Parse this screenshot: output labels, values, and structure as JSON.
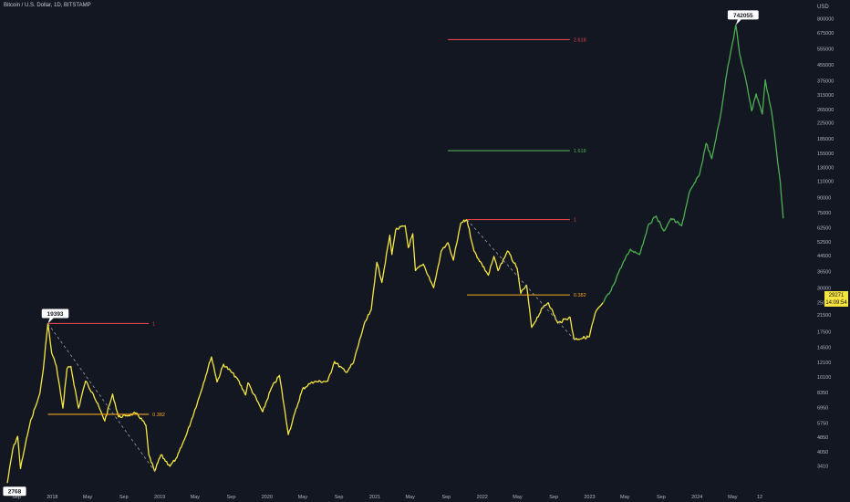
{
  "header": {
    "symbol": "Bitcoin / U.S. Dollar, 1D, BITSTAMP"
  },
  "price_tag": {
    "price": "29271",
    "countdown": "14:09:54"
  },
  "colors": {
    "background": "#131722",
    "history": "#f5e642",
    "projection": "#4caf50",
    "fib_red": "#e0434a",
    "fib_green": "#4caf50",
    "fib_orange": "#f5a623",
    "dashed": "#9aa0a6",
    "axis_text": "#b2b5be"
  },
  "chart_data": {
    "type": "line",
    "title": "Bitcoin / U.S. Dollar, 1D, BITSTAMP",
    "xlabel": "",
    "ylabel": "USD",
    "y_scale": "log",
    "ylim": [
      3000,
      900000
    ],
    "xlim": [
      "2017-08-01",
      "2025-01-31"
    ],
    "x_tick_labels": [
      {
        "date": "2017-09-01",
        "label": "Sep"
      },
      {
        "date": "2018-01-01",
        "label": "2018"
      },
      {
        "date": "2018-05-01",
        "label": "May"
      },
      {
        "date": "2018-09-01",
        "label": "Sep"
      },
      {
        "date": "2019-01-01",
        "label": "2019"
      },
      {
        "date": "2019-05-01",
        "label": "May"
      },
      {
        "date": "2019-09-01",
        "label": "Sep"
      },
      {
        "date": "2020-01-01",
        "label": "2020"
      },
      {
        "date": "2020-05-01",
        "label": "May"
      },
      {
        "date": "2020-09-01",
        "label": "Sep"
      },
      {
        "date": "2021-01-01",
        "label": "2021"
      },
      {
        "date": "2021-05-01",
        "label": "May"
      },
      {
        "date": "2021-09-01",
        "label": "Sep"
      },
      {
        "date": "2022-01-01",
        "label": "2022"
      },
      {
        "date": "2022-05-01",
        "label": "May"
      },
      {
        "date": "2022-09-01",
        "label": "Sep"
      },
      {
        "date": "2023-01-01",
        "label": "2023"
      },
      {
        "date": "2023-05-01",
        "label": "May"
      },
      {
        "date": "2023-09-01",
        "label": "Sep"
      },
      {
        "date": "2024-01-01",
        "label": "2024"
      },
      {
        "date": "2024-05-01",
        "label": "May"
      },
      {
        "date": "2024-08-01",
        "label": "12"
      }
    ],
    "y_tick_labels": [
      "800000",
      "675000",
      "555000",
      "455000",
      "375000",
      "315000",
      "265000",
      "225000",
      "185000",
      "155000",
      "130000",
      "110000",
      "90000",
      "75000",
      "62500",
      "52500",
      "44500",
      "36500",
      "30000",
      "25000",
      "21500",
      "17500",
      "14500",
      "12100",
      "10100",
      "8350",
      "6950",
      "5750",
      "4850",
      "4050",
      "3410"
    ],
    "series": [
      {
        "color": "#f5e642",
        "points": [
          [
            "2017-08-01",
            2768
          ],
          [
            "2017-08-20",
            4200
          ],
          [
            "2017-09-05",
            4900
          ],
          [
            "2017-09-15",
            3300
          ],
          [
            "2017-10-01",
            4400
          ],
          [
            "2017-10-20",
            6000
          ],
          [
            "2017-11-10",
            7400
          ],
          [
            "2017-11-20",
            8300
          ],
          [
            "2017-12-01",
            11000
          ],
          [
            "2017-12-17",
            19393
          ],
          [
            "2017-12-30",
            13500
          ],
          [
            "2018-01-15",
            11500
          ],
          [
            "2018-02-06",
            6900
          ],
          [
            "2018-02-20",
            11200
          ],
          [
            "2018-03-05",
            11500
          ],
          [
            "2018-03-31",
            6900
          ],
          [
            "2018-04-24",
            9600
          ],
          [
            "2018-05-20",
            8200
          ],
          [
            "2018-06-28",
            5900
          ],
          [
            "2018-07-25",
            8200
          ],
          [
            "2018-08-14",
            6200
          ],
          [
            "2018-09-10",
            6300
          ],
          [
            "2018-10-15",
            6500
          ],
          [
            "2018-11-15",
            5600
          ],
          [
            "2018-11-25",
            3900
          ],
          [
            "2018-12-15",
            3200
          ],
          [
            "2019-01-05",
            3900
          ],
          [
            "2019-02-05",
            3400
          ],
          [
            "2019-03-01",
            3800
          ],
          [
            "2019-04-02",
            5000
          ],
          [
            "2019-05-15",
            7900
          ],
          [
            "2019-06-26",
            12900
          ],
          [
            "2019-07-15",
            9500
          ],
          [
            "2019-08-06",
            11800
          ],
          [
            "2019-09-20",
            10000
          ],
          [
            "2019-10-20",
            8100
          ],
          [
            "2019-10-28",
            9400
          ],
          [
            "2019-12-17",
            6600
          ],
          [
            "2020-01-15",
            8800
          ],
          [
            "2020-02-12",
            10300
          ],
          [
            "2020-03-13",
            5000
          ],
          [
            "2020-04-30",
            8700
          ],
          [
            "2020-06-01",
            9500
          ],
          [
            "2020-07-25",
            9600
          ],
          [
            "2020-08-17",
            12200
          ],
          [
            "2020-09-25",
            10700
          ],
          [
            "2020-10-20",
            12000
          ],
          [
            "2020-11-25",
            19000
          ],
          [
            "2020-12-20",
            23000
          ],
          [
            "2021-01-08",
            41000
          ],
          [
            "2021-01-25",
            32000
          ],
          [
            "2021-02-21",
            57000
          ],
          [
            "2021-02-28",
            45000
          ],
          [
            "2021-03-13",
            61000
          ],
          [
            "2021-04-14",
            64000
          ],
          [
            "2021-04-25",
            49000
          ],
          [
            "2021-05-10",
            58000
          ],
          [
            "2021-05-19",
            37000
          ],
          [
            "2021-06-15",
            40000
          ],
          [
            "2021-07-20",
            30000
          ],
          [
            "2021-08-15",
            47000
          ],
          [
            "2021-09-06",
            52000
          ],
          [
            "2021-09-25",
            42000
          ],
          [
            "2021-10-20",
            66000
          ],
          [
            "2021-11-10",
            69000
          ],
          [
            "2021-12-04",
            47000
          ],
          [
            "2022-01-22",
            35000
          ],
          [
            "2022-02-10",
            44000
          ],
          [
            "2022-02-24",
            37000
          ],
          [
            "2022-03-28",
            47000
          ],
          [
            "2022-04-30",
            38000
          ],
          [
            "2022-05-12",
            28000
          ],
          [
            "2022-06-01",
            31000
          ],
          [
            "2022-06-18",
            18500
          ],
          [
            "2022-07-29",
            24000
          ],
          [
            "2022-08-14",
            25000
          ],
          [
            "2022-09-15",
            19500
          ],
          [
            "2022-10-26",
            21000
          ],
          [
            "2022-11-09",
            16000
          ],
          [
            "2022-12-31",
            16500
          ],
          [
            "2023-01-20",
            22000
          ],
          [
            "2023-02-15",
            25000
          ]
        ]
      },
      {
        "color": "#4caf50",
        "points": [
          [
            "2023-02-15",
            25000
          ],
          [
            "2023-03-15",
            29000
          ],
          [
            "2023-04-15",
            38000
          ],
          [
            "2023-05-20",
            48000
          ],
          [
            "2023-06-20",
            45000
          ],
          [
            "2023-07-20",
            65000
          ],
          [
            "2023-08-15",
            72000
          ],
          [
            "2023-09-10",
            60000
          ],
          [
            "2023-10-05",
            70000
          ],
          [
            "2023-11-10",
            64000
          ],
          [
            "2023-12-05",
            95000
          ],
          [
            "2024-01-10",
            120000
          ],
          [
            "2024-02-01",
            175000
          ],
          [
            "2024-02-20",
            145000
          ],
          [
            "2024-03-20",
            240000
          ],
          [
            "2024-04-15",
            450000
          ],
          [
            "2024-05-01",
            600000
          ],
          [
            "2024-05-12",
            742055
          ],
          [
            "2024-05-25",
            520000
          ],
          [
            "2024-06-15",
            380000
          ],
          [
            "2024-07-05",
            260000
          ],
          [
            "2024-07-20",
            320000
          ],
          [
            "2024-08-10",
            250000
          ],
          [
            "2024-08-20",
            380000
          ],
          [
            "2024-09-10",
            260000
          ],
          [
            "2024-09-20",
            200000
          ],
          [
            "2024-10-01",
            140000
          ],
          [
            "2024-10-10",
            110000
          ],
          [
            "2024-10-20",
            70000
          ]
        ]
      }
    ],
    "fib_levels": [
      {
        "from": "2017-12-17",
        "to": "2018-11-25",
        "price": 19393,
        "label": "1",
        "color": "#e0434a"
      },
      {
        "from": "2017-12-17",
        "to": "2018-11-25",
        "price": 6400,
        "label": "0.382",
        "color": "#f5a623"
      },
      {
        "from": "2021-11-10",
        "to": "2022-10-26",
        "price": 69000,
        "label": "1",
        "color": "#e0434a"
      },
      {
        "from": "2021-11-10",
        "to": "2022-10-26",
        "price": 27500,
        "label": "0.382",
        "color": "#f5a623"
      },
      {
        "from": "2021-09-06",
        "to": "2022-10-26",
        "price": 160000,
        "label": "1.618",
        "color": "#4caf50"
      },
      {
        "from": "2021-09-06",
        "to": "2022-10-26",
        "price": 620000,
        "label": "2.618",
        "color": "#e0434a"
      }
    ],
    "trendlines": [
      {
        "from": [
          "2017-12-17",
          19393
        ],
        "to": [
          "2018-12-15",
          3200
        ]
      },
      {
        "from": [
          "2021-11-10",
          69000
        ],
        "to": [
          "2022-11-09",
          16000
        ]
      }
    ],
    "annotations": [
      {
        "date": "2017-12-17",
        "price": 19393,
        "text": "19393",
        "anchor": "top"
      },
      {
        "date": "2024-05-12",
        "price": 742055,
        "text": "742055",
        "anchor": "top"
      },
      {
        "date": "2017-08-01",
        "price": 2768,
        "text": "2768",
        "anchor": "bottom"
      }
    ]
  }
}
